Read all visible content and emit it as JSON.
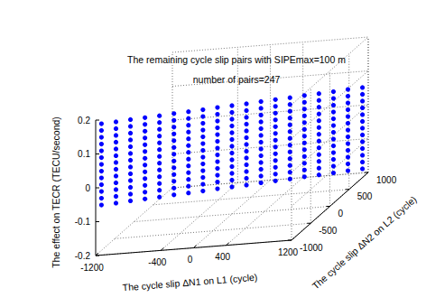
{
  "chart_data": {
    "type": "scatter3d",
    "title": "The remaining cycle slip pairs with SIPEmax=100 m",
    "subtitle": "number of pairs=247",
    "x_label": "The cycle slip ΔN1 on L1 (cycle)",
    "y_label": "The cycle slip ΔN2 on L2 (cycle)",
    "z_label": "The effect on TECR (TECU/second)",
    "xlim": [
      -1200,
      1200
    ],
    "xticks": [
      -1200,
      -400,
      0,
      400,
      1200
    ],
    "ylim": [
      -1000,
      1000
    ],
    "yticks": [
      -1000,
      -500,
      0,
      500,
      1000
    ],
    "zlim": [
      -0.2,
      0.2
    ],
    "zticks": [
      -0.2,
      -0.1,
      0,
      0.1,
      0.2
    ],
    "grid": true,
    "color": "#0000ff",
    "marker": "circle",
    "x": [
      -1170,
      -1170,
      -1170,
      -1170,
      -1170,
      -1170,
      -1170,
      -1170,
      -1170,
      -1170,
      -1170,
      -1170,
      -1170,
      -1040,
      -1040,
      -1040,
      -1040,
      -1040,
      -1040,
      -1040,
      -1040,
      -1040,
      -1040,
      -1040,
      -1040,
      -1040,
      -910,
      -910,
      -910,
      -910,
      -910,
      -910,
      -910,
      -910,
      -910,
      -910,
      -910,
      -910,
      -910,
      -780,
      -780,
      -780,
      -780,
      -780,
      -780,
      -780,
      -780,
      -780,
      -780,
      -780,
      -780,
      -780,
      -650,
      -650,
      -650,
      -650,
      -650,
      -650,
      -650,
      -650,
      -650,
      -650,
      -650,
      -650,
      -650,
      -520,
      -520,
      -520,
      -520,
      -520,
      -520,
      -520,
      -520,
      -520,
      -520,
      -520,
      -520,
      -520,
      -390,
      -390,
      -390,
      -390,
      -390,
      -390,
      -390,
      -390,
      -390,
      -390,
      -390,
      -390,
      -390,
      -260,
      -260,
      -260,
      -260,
      -260,
      -260,
      -260,
      -260,
      -260,
      -260,
      -260,
      -260,
      -260,
      -130,
      -130,
      -130,
      -130,
      -130,
      -130,
      -130,
      -130,
      -130,
      -130,
      -130,
      -130,
      -130,
      0,
      0,
      0,
      0,
      0,
      0,
      0,
      0,
      0,
      0,
      0,
      0,
      0,
      130,
      130,
      130,
      130,
      130,
      130,
      130,
      130,
      130,
      130,
      130,
      130,
      130,
      260,
      260,
      260,
      260,
      260,
      260,
      260,
      260,
      260,
      260,
      260,
      260,
      260,
      390,
      390,
      390,
      390,
      390,
      390,
      390,
      390,
      390,
      390,
      390,
      390,
      390,
      520,
      520,
      520,
      520,
      520,
      520,
      520,
      520,
      520,
      520,
      520,
      520,
      520,
      650,
      650,
      650,
      650,
      650,
      650,
      650,
      650,
      650,
      650,
      650,
      650,
      650,
      780,
      780,
      780,
      780,
      780,
      780,
      780,
      780,
      780,
      780,
      780,
      780,
      780,
      910,
      910,
      910,
      910,
      910,
      910,
      910,
      910,
      910,
      910,
      910,
      910,
      910,
      1040,
      1040,
      1040,
      1040,
      1040,
      1040,
      1040,
      1040,
      1040,
      1040,
      1040,
      1040,
      1040,
      1170,
      1170,
      1170,
      1170,
      1170,
      1170,
      1170,
      1170,
      1170,
      1170,
      1170,
      1170,
      1170
    ],
    "y": [
      -913,
      -913,
      -913,
      -913,
      -913,
      -913,
      -913,
      -913,
      -913,
      -913,
      -913,
      -913,
      -913,
      -811,
      -811,
      -811,
      -811,
      -811,
      -811,
      -811,
      -811,
      -811,
      -811,
      -811,
      -811,
      -811,
      -710,
      -710,
      -710,
      -710,
      -710,
      -710,
      -710,
      -710,
      -710,
      -710,
      -710,
      -710,
      -710,
      -608,
      -608,
      -608,
      -608,
      -608,
      -608,
      -608,
      -608,
      -608,
      -608,
      -608,
      -608,
      -608,
      -507,
      -507,
      -507,
      -507,
      -507,
      -507,
      -507,
      -507,
      -507,
      -507,
      -507,
      -507,
      -507,
      -406,
      -406,
      -406,
      -406,
      -406,
      -406,
      -406,
      -406,
      -406,
      -406,
      -406,
      -406,
      -406,
      -304,
      -304,
      -304,
      -304,
      -304,
      -304,
      -304,
      -304,
      -304,
      -304,
      -304,
      -304,
      -304,
      -203,
      -203,
      -203,
      -203,
      -203,
      -203,
      -203,
      -203,
      -203,
      -203,
      -203,
      -203,
      -203,
      -101,
      -101,
      -101,
      -101,
      -101,
      -101,
      -101,
      -101,
      -101,
      -101,
      -101,
      -101,
      -101,
      0,
      0,
      0,
      0,
      0,
      0,
      0,
      0,
      0,
      0,
      0,
      0,
      0,
      101,
      101,
      101,
      101,
      101,
      101,
      101,
      101,
      101,
      101,
      101,
      101,
      101,
      203,
      203,
      203,
      203,
      203,
      203,
      203,
      203,
      203,
      203,
      203,
      203,
      203,
      304,
      304,
      304,
      304,
      304,
      304,
      304,
      304,
      304,
      304,
      304,
      304,
      304,
      406,
      406,
      406,
      406,
      406,
      406,
      406,
      406,
      406,
      406,
      406,
      406,
      406,
      507,
      507,
      507,
      507,
      507,
      507,
      507,
      507,
      507,
      507,
      507,
      507,
      507,
      608,
      608,
      608,
      608,
      608,
      608,
      608,
      608,
      608,
      608,
      608,
      608,
      608,
      710,
      710,
      710,
      710,
      710,
      710,
      710,
      710,
      710,
      710,
      710,
      710,
      710,
      811,
      811,
      811,
      811,
      811,
      811,
      811,
      811,
      811,
      811,
      811,
      811,
      811,
      913,
      913,
      913,
      913,
      913,
      913,
      913,
      913,
      913,
      913,
      913,
      913,
      913
    ],
    "z": [
      -0.06,
      -0.04,
      -0.02,
      0,
      0.02,
      0.04,
      0.06,
      0.08,
      0.1,
      0.12,
      0.14,
      0.16,
      0.18,
      -0.067,
      -0.047,
      -0.027,
      -0.007,
      0.013,
      0.033,
      0.053,
      0.073,
      0.093,
      0.113,
      0.133,
      0.153,
      0.173,
      -0.073,
      -0.053,
      -0.033,
      -0.013,
      0.007,
      0.027,
      0.047,
      0.067,
      0.087,
      0.107,
      0.127,
      0.147,
      0.167,
      -0.08,
      -0.06,
      -0.04,
      -0.02,
      0,
      0.02,
      0.04,
      0.06,
      0.08,
      0.1,
      0.12,
      0.14,
      0.16,
      -0.087,
      -0.067,
      -0.047,
      -0.027,
      -0.007,
      0.013,
      0.033,
      0.053,
      0.073,
      0.093,
      0.113,
      0.133,
      0.153,
      -0.093,
      -0.073,
      -0.053,
      -0.033,
      -0.013,
      0.007,
      0.027,
      0.047,
      0.067,
      0.087,
      0.107,
      0.127,
      0.147,
      -0.1,
      -0.08,
      -0.06,
      -0.04,
      -0.02,
      0,
      0.02,
      0.04,
      0.06,
      0.08,
      0.1,
      0.12,
      0.14,
      -0.107,
      -0.087,
      -0.067,
      -0.047,
      -0.027,
      -0.007,
      0.013,
      0.033,
      0.053,
      0.073,
      0.093,
      0.113,
      0.133,
      -0.113,
      -0.093,
      -0.073,
      -0.053,
      -0.033,
      -0.013,
      0.007,
      0.027,
      0.047,
      0.067,
      0.087,
      0.107,
      0.127,
      -0.12,
      -0.1,
      -0.08,
      -0.06,
      -0.04,
      -0.02,
      0,
      0.02,
      0.04,
      0.06,
      0.08,
      0.1,
      0.12,
      -0.127,
      -0.107,
      -0.087,
      -0.067,
      -0.047,
      -0.027,
      -0.007,
      0.013,
      0.033,
      0.053,
      0.073,
      0.093,
      0.113,
      -0.133,
      -0.113,
      -0.093,
      -0.073,
      -0.053,
      -0.033,
      -0.013,
      0.007,
      0.027,
      0.047,
      0.067,
      0.087,
      0.107,
      -0.14,
      -0.12,
      -0.1,
      -0.08,
      -0.06,
      -0.04,
      -0.02,
      0,
      0.02,
      0.04,
      0.06,
      0.08,
      0.1,
      -0.147,
      -0.127,
      -0.107,
      -0.087,
      -0.067,
      -0.047,
      -0.027,
      -0.007,
      0.013,
      0.033,
      0.053,
      0.073,
      0.093,
      -0.153,
      -0.133,
      -0.113,
      -0.093,
      -0.073,
      -0.053,
      -0.033,
      -0.013,
      0.007,
      0.027,
      0.047,
      0.067,
      0.087,
      -0.16,
      -0.14,
      -0.12,
      -0.1,
      -0.08,
      -0.06,
      -0.04,
      -0.02,
      0,
      0.02,
      0.04,
      0.06,
      0.08,
      -0.167,
      -0.147,
      -0.127,
      -0.107,
      -0.087,
      -0.067,
      -0.047,
      -0.027,
      -0.007,
      0.013,
      0.033,
      0.053,
      0.073,
      -0.173,
      -0.153,
      -0.133,
      -0.113,
      -0.093,
      -0.073,
      -0.053,
      -0.033,
      -0.013,
      0.007,
      0.027,
      0.047,
      0.067,
      -0.18,
      -0.16,
      -0.14,
      -0.12,
      -0.1,
      -0.08,
      -0.06,
      -0.04,
      -0.02,
      0,
      0.02,
      0.04,
      0.06
    ]
  }
}
